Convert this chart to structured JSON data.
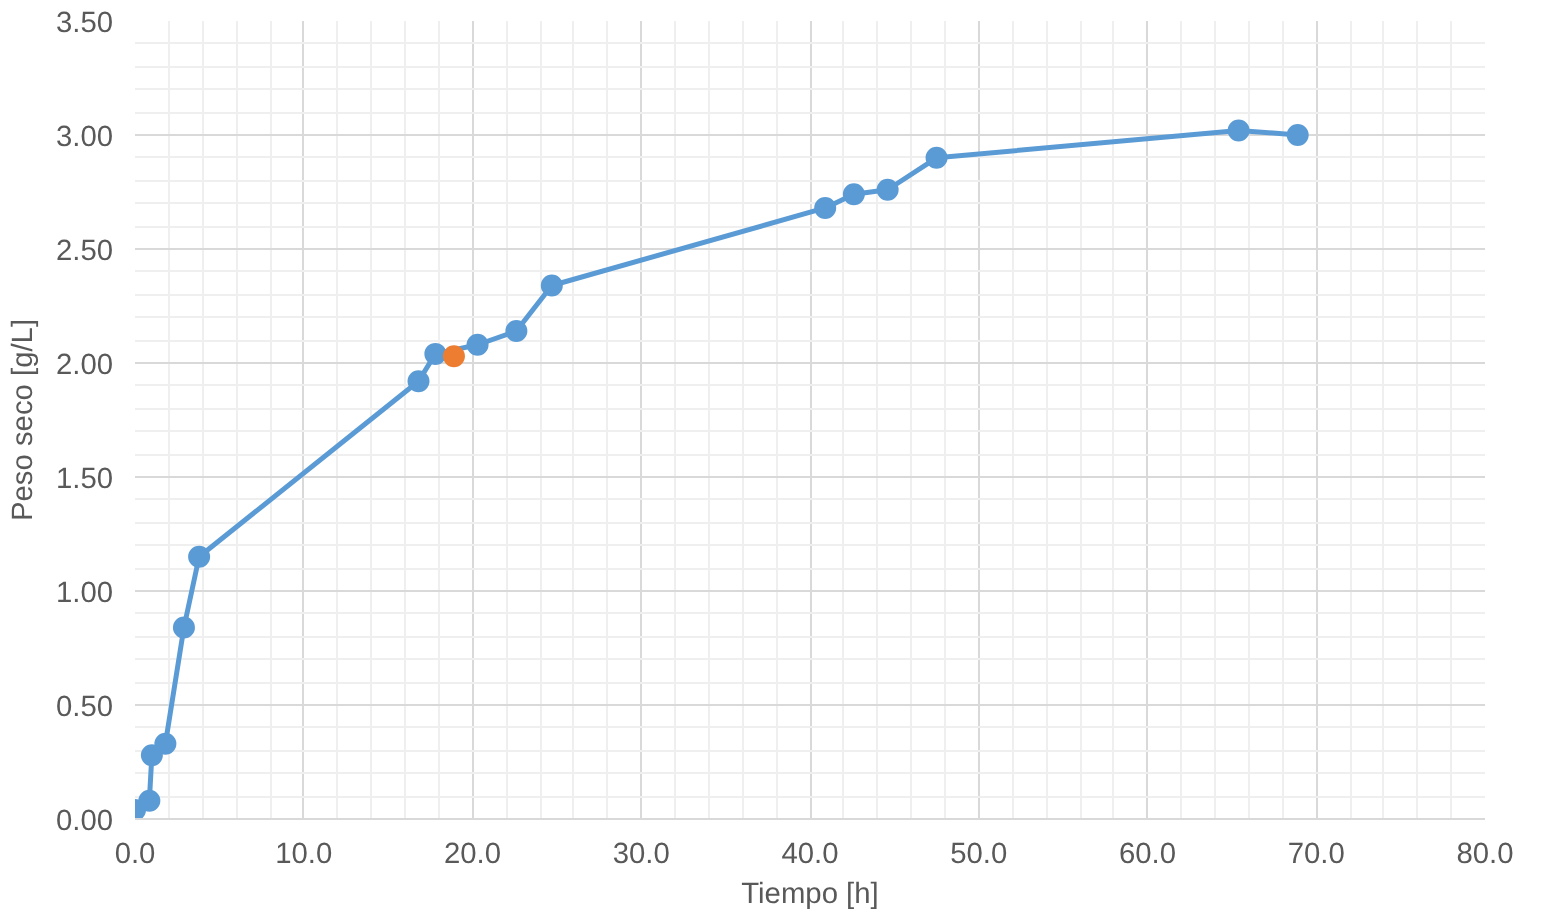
{
  "chart_data": {
    "type": "line",
    "xlabel": "Tiempo [h]",
    "ylabel": "Peso seco [g/L]",
    "xlim": [
      0,
      80
    ],
    "ylim": [
      0,
      3.5
    ],
    "xticks": [
      {
        "value": 0,
        "label": "0.0"
      },
      {
        "value": 10,
        "label": "10.0"
      },
      {
        "value": 20,
        "label": "20.0"
      },
      {
        "value": 30,
        "label": "30.0"
      },
      {
        "value": 40,
        "label": "40.0"
      },
      {
        "value": 50,
        "label": "50.0"
      },
      {
        "value": 60,
        "label": "60.0"
      },
      {
        "value": 70,
        "label": "70.0"
      },
      {
        "value": 80,
        "label": "80.0"
      }
    ],
    "yticks": [
      {
        "value": 0,
        "label": "0.00"
      },
      {
        "value": 0.5,
        "label": "0.50"
      },
      {
        "value": 1,
        "label": "1.00"
      },
      {
        "value": 1.5,
        "label": "1.50"
      },
      {
        "value": 2,
        "label": "2.00"
      },
      {
        "value": 2.5,
        "label": "2.50"
      },
      {
        "value": 3,
        "label": "3.00"
      },
      {
        "value": 3.5,
        "label": "3.50"
      }
    ],
    "grid": true,
    "marker": "circle",
    "line_style": "solid",
    "series": [
      {
        "color": "#5b9bd5",
        "x": [
          0,
          0.85,
          1.0,
          1.8,
          2.9,
          3.8,
          16.8,
          17.8,
          20.3,
          22.6,
          24.7,
          40.9,
          42.6,
          44.6,
          47.5,
          65.4,
          68.9
        ],
        "values": [
          0.04,
          0.08,
          0.28,
          0.33,
          0.84,
          1.15,
          1.92,
          2.04,
          2.08,
          2.14,
          2.34,
          2.68,
          2.74,
          2.76,
          2.9,
          3.02,
          3.0
        ]
      },
      {
        "type": "scatter",
        "color": "#ed7d31",
        "x": [
          18.9
        ],
        "values": [
          2.03
        ]
      }
    ]
  }
}
